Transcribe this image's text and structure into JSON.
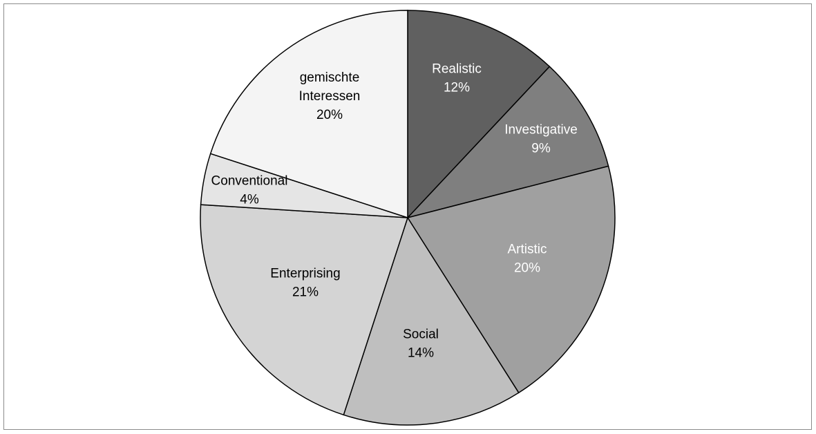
{
  "chart_data": {
    "type": "pie",
    "start_angle": "top, clockwise",
    "slices": [
      {
        "label": "Realistic",
        "value": 12,
        "value_label": "12%",
        "color": "#606060",
        "text_color": "#ffffff"
      },
      {
        "label": "Investigative",
        "value": 9,
        "value_label": "9%",
        "color": "#7f7f7f",
        "text_color": "#ffffff"
      },
      {
        "label": "Artistic",
        "value": 20,
        "value_label": "20%",
        "color": "#a0a0a0",
        "text_color": "#ffffff"
      },
      {
        "label": "Social",
        "value": 14,
        "value_label": "14%",
        "color": "#bfbfbf",
        "text_color": "#000000"
      },
      {
        "label": "Enterprising",
        "value": 21,
        "value_label": "21%",
        "color": "#d4d4d4",
        "text_color": "#000000"
      },
      {
        "label": "Conventional",
        "value": 4,
        "value_label": "4%",
        "color": "#e5e5e5",
        "text_color": "#000000"
      },
      {
        "label": "gemischte Interessen",
        "label_lines": [
          "gemischte",
          "Interessen"
        ],
        "value": 20,
        "value_label": "20%",
        "color": "#f4f4f4",
        "text_color": "#000000"
      }
    ],
    "legend": "none"
  }
}
